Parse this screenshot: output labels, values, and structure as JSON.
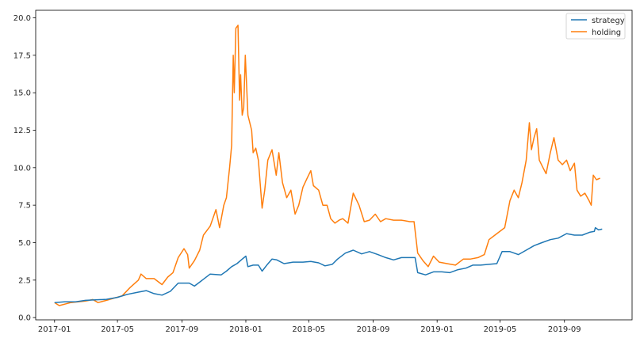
{
  "chart_data": {
    "type": "line",
    "title": "",
    "xlabel": "",
    "ylabel": "",
    "x_ticks": [
      "2017-01",
      "2017-05",
      "2017-09",
      "2018-01",
      "2018-05",
      "2018-09",
      "2019-01",
      "2019-05",
      "2019-09"
    ],
    "y_ticks": [
      "0.0",
      "2.5",
      "5.0",
      "7.5",
      "10.0",
      "12.5",
      "15.0",
      "17.5",
      "20.0"
    ],
    "ylim": [
      -0.15,
      20.5
    ],
    "xlim": [
      "2016-11-26",
      "2020-01-08"
    ],
    "grid": false,
    "legend_position": "top-right",
    "series": [
      {
        "name": "strategy",
        "color": "#1f77b4",
        "points": [
          [
            "2017-01-01",
            1.0
          ],
          [
            "2017-01-20",
            1.05
          ],
          [
            "2017-02-10",
            1.05
          ],
          [
            "2017-03-01",
            1.15
          ],
          [
            "2017-03-20",
            1.18
          ],
          [
            "2017-04-10",
            1.22
          ],
          [
            "2017-05-01",
            1.35
          ],
          [
            "2017-05-20",
            1.55
          ],
          [
            "2017-06-10",
            1.7
          ],
          [
            "2017-06-25",
            1.8
          ],
          [
            "2017-07-10",
            1.6
          ],
          [
            "2017-07-25",
            1.5
          ],
          [
            "2017-08-10",
            1.75
          ],
          [
            "2017-08-25",
            2.3
          ],
          [
            "2017-09-15",
            2.3
          ],
          [
            "2017-09-25",
            2.1
          ],
          [
            "2017-10-10",
            2.5
          ],
          [
            "2017-10-25",
            2.9
          ],
          [
            "2017-11-15",
            2.85
          ],
          [
            "2017-11-25",
            3.1
          ],
          [
            "2017-12-05",
            3.4
          ],
          [
            "2017-12-15",
            3.6
          ],
          [
            "2017-12-25",
            3.9
          ],
          [
            "2018-01-01",
            4.1
          ],
          [
            "2018-01-05",
            3.4
          ],
          [
            "2018-01-15",
            3.5
          ],
          [
            "2018-01-25",
            3.5
          ],
          [
            "2018-02-01",
            3.1
          ],
          [
            "2018-02-10",
            3.5
          ],
          [
            "2018-02-20",
            3.9
          ],
          [
            "2018-03-01",
            3.85
          ],
          [
            "2018-03-15",
            3.6
          ],
          [
            "2018-04-01",
            3.7
          ],
          [
            "2018-04-20",
            3.7
          ],
          [
            "2018-05-05",
            3.75
          ],
          [
            "2018-05-20",
            3.65
          ],
          [
            "2018-06-01",
            3.45
          ],
          [
            "2018-06-15",
            3.55
          ],
          [
            "2018-06-25",
            3.9
          ],
          [
            "2018-07-10",
            4.3
          ],
          [
            "2018-07-25",
            4.5
          ],
          [
            "2018-08-10",
            4.25
          ],
          [
            "2018-08-25",
            4.4
          ],
          [
            "2018-09-10",
            4.2
          ],
          [
            "2018-09-25",
            4.0
          ],
          [
            "2018-10-10",
            3.85
          ],
          [
            "2018-10-25",
            4.0
          ],
          [
            "2018-11-10",
            4.0
          ],
          [
            "2018-11-20",
            4.0
          ],
          [
            "2018-11-25",
            3.0
          ],
          [
            "2018-12-10",
            2.85
          ],
          [
            "2018-12-25",
            3.05
          ],
          [
            "2019-01-10",
            3.05
          ],
          [
            "2019-01-25",
            3.0
          ],
          [
            "2019-02-10",
            3.2
          ],
          [
            "2019-02-25",
            3.3
          ],
          [
            "2019-03-10",
            3.5
          ],
          [
            "2019-03-25",
            3.5
          ],
          [
            "2019-04-10",
            3.55
          ],
          [
            "2019-04-25",
            3.6
          ],
          [
            "2019-05-05",
            4.4
          ],
          [
            "2019-05-20",
            4.4
          ],
          [
            "2019-06-05",
            4.2
          ],
          [
            "2019-06-20",
            4.5
          ],
          [
            "2019-07-05",
            4.8
          ],
          [
            "2019-07-20",
            5.0
          ],
          [
            "2019-08-05",
            5.2
          ],
          [
            "2019-08-20",
            5.3
          ],
          [
            "2019-09-05",
            5.6
          ],
          [
            "2019-09-20",
            5.5
          ],
          [
            "2019-10-05",
            5.5
          ],
          [
            "2019-10-20",
            5.7
          ],
          [
            "2019-10-28",
            5.75
          ],
          [
            "2019-10-30",
            6.0
          ],
          [
            "2019-11-05",
            5.85
          ],
          [
            "2019-11-12",
            5.9
          ]
        ]
      },
      {
        "name": "holding",
        "color": "#ff7f0e",
        "points": [
          [
            "2017-01-01",
            1.0
          ],
          [
            "2017-01-10",
            0.8
          ],
          [
            "2017-02-01",
            1.0
          ],
          [
            "2017-03-01",
            1.1
          ],
          [
            "2017-03-15",
            1.2
          ],
          [
            "2017-03-25",
            1.0
          ],
          [
            "2017-04-10",
            1.15
          ],
          [
            "2017-04-25",
            1.3
          ],
          [
            "2017-05-10",
            1.45
          ],
          [
            "2017-05-25",
            2.0
          ],
          [
            "2017-06-10",
            2.5
          ],
          [
            "2017-06-15",
            2.9
          ],
          [
            "2017-06-25",
            2.6
          ],
          [
            "2017-07-10",
            2.6
          ],
          [
            "2017-07-25",
            2.2
          ],
          [
            "2017-08-05",
            2.7
          ],
          [
            "2017-08-15",
            3.0
          ],
          [
            "2017-08-25",
            4.0
          ],
          [
            "2017-09-05",
            4.6
          ],
          [
            "2017-09-12",
            4.2
          ],
          [
            "2017-09-15",
            3.3
          ],
          [
            "2017-09-25",
            3.8
          ],
          [
            "2017-10-05",
            4.5
          ],
          [
            "2017-10-12",
            5.5
          ],
          [
            "2017-10-25",
            6.1
          ],
          [
            "2017-11-05",
            7.2
          ],
          [
            "2017-11-12",
            6.0
          ],
          [
            "2017-11-20",
            7.5
          ],
          [
            "2017-11-25",
            8.0
          ],
          [
            "2017-12-01",
            10.0
          ],
          [
            "2017-12-05",
            11.5
          ],
          [
            "2017-12-08",
            17.5
          ],
          [
            "2017-12-10",
            15.0
          ],
          [
            "2017-12-13",
            19.3
          ],
          [
            "2017-12-17",
            19.5
          ],
          [
            "2017-12-20",
            14.5
          ],
          [
            "2017-12-22",
            16.2
          ],
          [
            "2017-12-25",
            13.5
          ],
          [
            "2017-12-28",
            14.0
          ],
          [
            "2017-12-31",
            17.5
          ],
          [
            "2018-01-05",
            13.5
          ],
          [
            "2018-01-12",
            12.5
          ],
          [
            "2018-01-15",
            11.0
          ],
          [
            "2018-01-20",
            11.3
          ],
          [
            "2018-01-25",
            10.5
          ],
          [
            "2018-02-01",
            7.3
          ],
          [
            "2018-02-06",
            8.5
          ],
          [
            "2018-02-12",
            10.5
          ],
          [
            "2018-02-20",
            11.2
          ],
          [
            "2018-02-28",
            9.5
          ],
          [
            "2018-03-05",
            11.0
          ],
          [
            "2018-03-12",
            9.0
          ],
          [
            "2018-03-20",
            8.0
          ],
          [
            "2018-03-28",
            8.5
          ],
          [
            "2018-04-05",
            6.9
          ],
          [
            "2018-04-12",
            7.5
          ],
          [
            "2018-04-20",
            8.7
          ],
          [
            "2018-04-28",
            9.3
          ],
          [
            "2018-05-05",
            9.8
          ],
          [
            "2018-05-10",
            8.8
          ],
          [
            "2018-05-20",
            8.5
          ],
          [
            "2018-05-28",
            7.5
          ],
          [
            "2018-06-05",
            7.5
          ],
          [
            "2018-06-12",
            6.6
          ],
          [
            "2018-06-20",
            6.3
          ],
          [
            "2018-06-28",
            6.5
          ],
          [
            "2018-07-05",
            6.6
          ],
          [
            "2018-07-15",
            6.3
          ],
          [
            "2018-07-25",
            8.3
          ],
          [
            "2018-08-05",
            7.5
          ],
          [
            "2018-08-15",
            6.4
          ],
          [
            "2018-08-25",
            6.5
          ],
          [
            "2018-09-05",
            6.9
          ],
          [
            "2018-09-15",
            6.4
          ],
          [
            "2018-09-25",
            6.6
          ],
          [
            "2018-10-10",
            6.5
          ],
          [
            "2018-10-25",
            6.5
          ],
          [
            "2018-11-10",
            6.4
          ],
          [
            "2018-11-18",
            6.4
          ],
          [
            "2018-11-25",
            4.3
          ],
          [
            "2018-12-05",
            3.8
          ],
          [
            "2018-12-15",
            3.4
          ],
          [
            "2018-12-25",
            4.1
          ],
          [
            "2019-01-05",
            3.7
          ],
          [
            "2019-01-20",
            3.6
          ],
          [
            "2019-02-05",
            3.5
          ],
          [
            "2019-02-20",
            3.9
          ],
          [
            "2019-03-05",
            3.9
          ],
          [
            "2019-03-20",
            4.0
          ],
          [
            "2019-04-01",
            4.2
          ],
          [
            "2019-04-10",
            5.2
          ],
          [
            "2019-04-25",
            5.6
          ],
          [
            "2019-05-10",
            6.0
          ],
          [
            "2019-05-20",
            7.8
          ],
          [
            "2019-05-28",
            8.5
          ],
          [
            "2019-06-05",
            8.0
          ],
          [
            "2019-06-12",
            9.0
          ],
          [
            "2019-06-20",
            10.5
          ],
          [
            "2019-06-26",
            13.0
          ],
          [
            "2019-06-30",
            11.2
          ],
          [
            "2019-07-05",
            12.0
          ],
          [
            "2019-07-10",
            12.6
          ],
          [
            "2019-07-15",
            10.5
          ],
          [
            "2019-07-22",
            10.0
          ],
          [
            "2019-07-28",
            9.6
          ],
          [
            "2019-08-05",
            11.0
          ],
          [
            "2019-08-12",
            12.0
          ],
          [
            "2019-08-20",
            10.5
          ],
          [
            "2019-08-28",
            10.2
          ],
          [
            "2019-09-05",
            10.5
          ],
          [
            "2019-09-12",
            9.8
          ],
          [
            "2019-09-20",
            10.3
          ],
          [
            "2019-09-25",
            8.5
          ],
          [
            "2019-10-02",
            8.1
          ],
          [
            "2019-10-10",
            8.3
          ],
          [
            "2019-10-18",
            7.8
          ],
          [
            "2019-10-22",
            7.5
          ],
          [
            "2019-10-26",
            9.5
          ],
          [
            "2019-11-01",
            9.2
          ],
          [
            "2019-11-08",
            9.3
          ]
        ]
      }
    ]
  }
}
